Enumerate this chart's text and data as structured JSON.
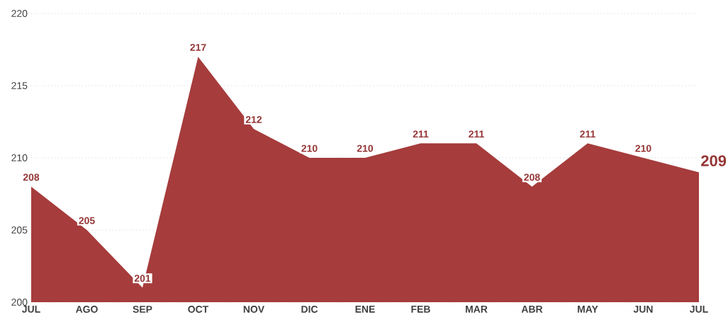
{
  "chart_data": {
    "type": "area",
    "categories": [
      "JUL",
      "AGO",
      "SEP",
      "OCT",
      "NOV",
      "DIC",
      "ENE",
      "FEB",
      "MAR",
      "ABR",
      "MAY",
      "JUN",
      "JUL"
    ],
    "values": [
      208,
      205,
      201,
      217,
      212,
      210,
      210,
      211,
      211,
      208,
      211,
      210,
      209
    ],
    "color": "#a63c3c",
    "ylim": [
      200,
      220
    ],
    "yticks": [
      200,
      205,
      210,
      215,
      220
    ],
    "grid": "y",
    "data_labels": true
  }
}
